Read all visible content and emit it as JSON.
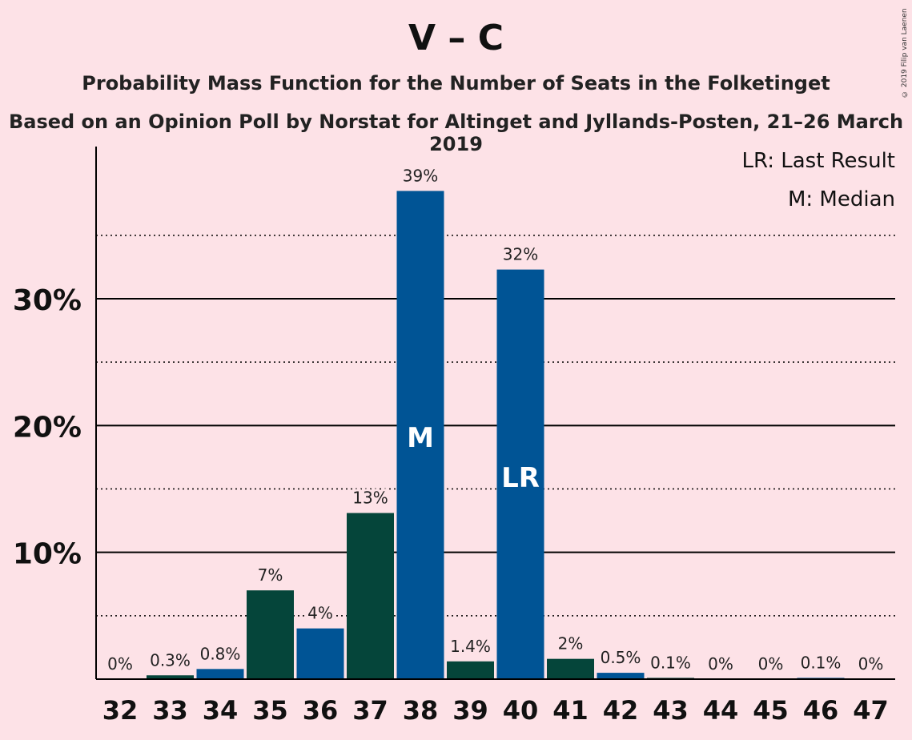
{
  "title": "V – C",
  "subtitle": "Probability Mass Function for the Number of Seats in the Folketinget",
  "subtitle2": "Based on an Opinion Poll by Norstat for Altinget and Jyllands-Posten, 21–26 March 2019",
  "copyright": "© 2019 Filip van Laenen",
  "legend": {
    "lr": "LR: Last Result",
    "m": "M: Median"
  },
  "colors": {
    "background": "#FDE2E7",
    "dark_green": "#05453A",
    "blue": "#005495",
    "axis": "#000000"
  },
  "chart_data": {
    "type": "bar",
    "categories": [
      "32",
      "33",
      "34",
      "35",
      "36",
      "37",
      "38",
      "39",
      "40",
      "41",
      "42",
      "43",
      "44",
      "45",
      "46",
      "47"
    ],
    "values": [
      0,
      0.3,
      0.8,
      7,
      4,
      13.1,
      38.5,
      1.4,
      32.3,
      1.6,
      0.5,
      0.1,
      0,
      0,
      0.1,
      0
    ],
    "labels": [
      "0%",
      "0.3%",
      "0.8%",
      "7%",
      "4%",
      "13%",
      "39%",
      "1.4%",
      "32%",
      "2%",
      "0.5%",
      "0.1%",
      "0%",
      "0%",
      "0.1%",
      "0%"
    ],
    "bar_colors": [
      "dark_green",
      "dark_green",
      "blue",
      "dark_green",
      "blue",
      "dark_green",
      "blue",
      "dark_green",
      "blue",
      "dark_green",
      "blue",
      "dark_green",
      "blue",
      "dark_green",
      "blue",
      "dark_green"
    ],
    "markers": {
      "38": "M",
      "40": "LR"
    },
    "yticks": [
      10,
      20,
      30
    ],
    "ytick_labels": [
      "10%",
      "20%",
      "30%"
    ],
    "minor_gridlines": [
      5,
      15,
      25,
      35
    ],
    "ylim": [
      0,
      42
    ],
    "grid": true,
    "legend_position": "top-right"
  }
}
